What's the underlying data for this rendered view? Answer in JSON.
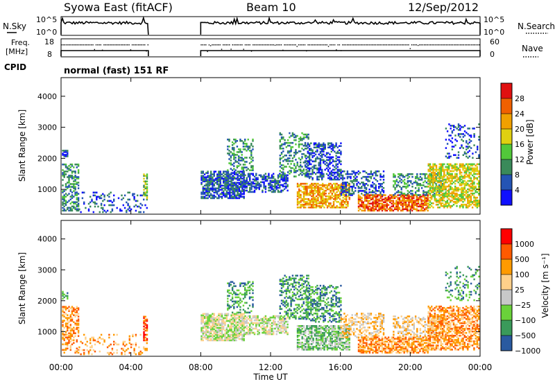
{
  "header": {
    "title": "Syowa East (fitACF)",
    "beam": "Beam 10",
    "date": "12/Sep/2012"
  },
  "sky_panel": {
    "left_label": "N.Sky",
    "right_label": "N.Search",
    "ticks_left": [
      "10^5",
      "10^0"
    ],
    "ticks_right": [
      "10^5",
      "10^0"
    ]
  },
  "freq_panel": {
    "left_label_1": "Freq.",
    "left_label_2": "[MHz]",
    "right_label": "Nave",
    "ticks_left": [
      "18",
      "8"
    ],
    "ticks_right": [
      "60",
      "0"
    ]
  },
  "cpid": {
    "label": "CPID",
    "value": "normal (fast) 151 RF"
  },
  "colors": {
    "power": [
      "#1010ff",
      "#2454b4",
      "#3a8a5a",
      "#52c83a",
      "#e0d010",
      "#f0a000",
      "#f06000",
      "#e01010"
    ],
    "velocity": [
      "#ff0000",
      "#ff5a00",
      "#ff9a00",
      "#ffd08a",
      "#c8c8c8",
      "#6ad23a",
      "#3a9a5a",
      "#2a5aa0"
    ]
  },
  "chart_data": [
    {
      "type": "heatmap",
      "title": "",
      "ylabel": "Slant Range [km]",
      "xlabel": "",
      "x_ticks": [
        "00:00",
        "04:00",
        "08:00",
        "12:00",
        "16:00",
        "20:00",
        "00:00"
      ],
      "y_ticks": [
        "1000",
        "2000",
        "3000",
        "4000"
      ],
      "ylim": [
        200,
        4600
      ],
      "xlim_hours": [
        0,
        24
      ],
      "data_gap_hours": [
        5,
        8
      ],
      "colorbar": {
        "label": "Power [dB]",
        "ticks": [
          "4",
          "8",
          "12",
          "16",
          "20",
          "24",
          "28"
        ]
      }
    },
    {
      "type": "heatmap",
      "title": "",
      "ylabel": "Slant Range [km]",
      "xlabel": "Time UT",
      "x_ticks": [
        "00:00",
        "04:00",
        "08:00",
        "12:00",
        "16:00",
        "20:00",
        "00:00"
      ],
      "y_ticks": [
        "1000",
        "2000",
        "3000",
        "4000"
      ],
      "ylim": [
        200,
        4600
      ],
      "xlim_hours": [
        0,
        24
      ],
      "data_gap_hours": [
        5,
        8
      ],
      "colorbar": {
        "label": "Velocity [m s⁻¹]",
        "ticks": [
          "1000",
          "500",
          "100",
          "25",
          "−25",
          "−100",
          "−500",
          "−1000"
        ]
      }
    }
  ]
}
